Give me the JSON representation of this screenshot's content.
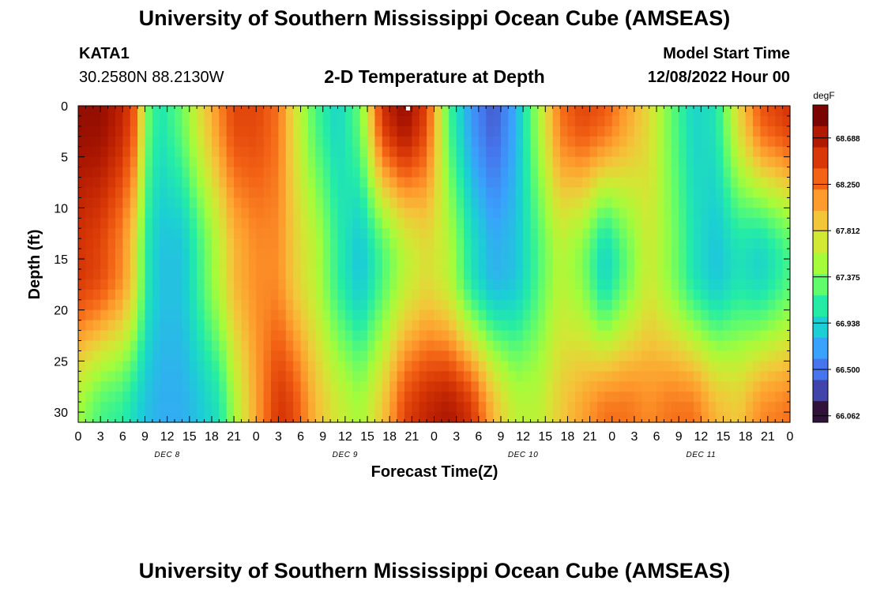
{
  "header": {
    "title": "University of Southern Mississippi Ocean Cube (AMSEAS)",
    "station_id": "KATA1",
    "coords": "30.2580N  88.2130W",
    "plot_title": "2-D Temperature at Depth",
    "model_label": "Model Start Time",
    "model_time": "12/08/2022 Hour 00"
  },
  "footer": {
    "title": "University of Southern Mississippi Ocean Cube (AMSEAS)"
  },
  "chart_data": {
    "type": "heatmap",
    "xlabel": "Forecast Time(Z)",
    "ylabel": "Depth (ft)",
    "x_hours": [
      0,
      96
    ],
    "x_tick_labels": [
      "0",
      "3",
      "6",
      "9",
      "12",
      "15",
      "18",
      "21",
      "0",
      "3",
      "6",
      "9",
      "12",
      "15",
      "18",
      "21",
      "0",
      "3",
      "6",
      "9",
      "12",
      "15",
      "18",
      "21",
      "0",
      "3",
      "6",
      "9",
      "12",
      "15",
      "18",
      "21",
      "0"
    ],
    "day_labels": [
      "DEC 8",
      "DEC 9",
      "DEC 10",
      "DEC 11"
    ],
    "ylim": [
      0,
      31
    ],
    "y_ticks": [
      0,
      5,
      10,
      15,
      20,
      25,
      30
    ],
    "colorbar": {
      "unit": "degF",
      "min": 66.0,
      "max": 69.0,
      "tick_values": [
        68.688,
        68.25,
        67.812,
        67.375,
        66.938,
        66.5,
        66.062
      ],
      "tick_labels": [
        "68.688",
        "68.250",
        "67.812",
        "67.375",
        "66.938",
        "66.500",
        "66.062"
      ],
      "colors": [
        "#30123b",
        "#4145ab",
        "#4675ed",
        "#39a2fc",
        "#1bcfd4",
        "#24eca6",
        "#61fc6c",
        "#a4fc3b",
        "#d1e834",
        "#f3c63a",
        "#fe9b2d",
        "#f36315",
        "#d93806",
        "#b11901",
        "#7a0402"
      ]
    },
    "profiles": [
      {
        "hour": 0,
        "top": 68.9,
        "mid": 68.6,
        "bot": 67.5
      },
      {
        "hour": 3,
        "top": 68.9,
        "mid": 68.5,
        "bot": 67.2
      },
      {
        "hour": 6,
        "top": 68.7,
        "mid": 68.2,
        "bot": 67.1
      },
      {
        "hour": 8,
        "top": 68.3,
        "mid": 67.7,
        "bot": 66.9
      },
      {
        "hour": 9,
        "top": 67.4,
        "mid": 67.1,
        "bot": 66.8
      },
      {
        "hour": 11,
        "top": 67.0,
        "mid": 66.8,
        "bot": 66.7
      },
      {
        "hour": 14,
        "top": 67.3,
        "mid": 66.8,
        "bot": 66.7
      },
      {
        "hour": 16,
        "top": 67.7,
        "mid": 67.1,
        "bot": 66.8
      },
      {
        "hour": 19,
        "top": 68.2,
        "mid": 67.6,
        "bot": 67.0
      },
      {
        "hour": 21,
        "top": 68.5,
        "mid": 68.0,
        "bot": 67.5
      },
      {
        "hour": 24,
        "top": 68.5,
        "mid": 68.2,
        "bot": 68.1
      },
      {
        "hour": 27,
        "top": 68.3,
        "mid": 68.2,
        "bot": 68.6
      },
      {
        "hour": 29,
        "top": 67.8,
        "mid": 67.9,
        "bot": 68.5
      },
      {
        "hour": 32,
        "top": 67.2,
        "mid": 67.6,
        "bot": 68.0
      },
      {
        "hour": 35,
        "top": 66.9,
        "mid": 67.1,
        "bot": 67.7
      },
      {
        "hour": 38,
        "top": 67.3,
        "mid": 66.8,
        "bot": 67.5
      },
      {
        "hour": 41,
        "top": 68.6,
        "mid": 67.2,
        "bot": 67.9
      },
      {
        "hour": 44,
        "top": 68.9,
        "mid": 67.6,
        "bot": 68.5
      },
      {
        "hour": 47,
        "top": 68.5,
        "mid": 67.8,
        "bot": 68.7
      },
      {
        "hour": 50,
        "top": 67.2,
        "mid": 67.6,
        "bot": 68.8
      },
      {
        "hour": 53,
        "top": 66.6,
        "mid": 67.0,
        "bot": 68.6
      },
      {
        "hour": 56,
        "top": 66.3,
        "mid": 66.7,
        "bot": 68.0
      },
      {
        "hour": 59,
        "top": 66.7,
        "mid": 66.8,
        "bot": 67.6
      },
      {
        "hour": 62,
        "top": 67.5,
        "mid": 67.2,
        "bot": 67.6
      },
      {
        "hour": 65,
        "top": 68.3,
        "mid": 67.6,
        "bot": 67.9
      },
      {
        "hour": 68,
        "top": 68.5,
        "mid": 67.4,
        "bot": 68.1
      },
      {
        "hour": 71,
        "top": 68.4,
        "mid": 66.9,
        "bot": 68.3
      },
      {
        "hour": 74,
        "top": 68.1,
        "mid": 67.3,
        "bot": 68.3
      },
      {
        "hour": 77,
        "top": 67.8,
        "mid": 67.7,
        "bot": 68.2
      },
      {
        "hour": 80,
        "top": 67.3,
        "mid": 67.4,
        "bot": 68.3
      },
      {
        "hour": 83,
        "top": 66.9,
        "mid": 67.0,
        "bot": 68.3
      },
      {
        "hour": 86,
        "top": 67.0,
        "mid": 66.8,
        "bot": 68.0
      },
      {
        "hour": 89,
        "top": 67.8,
        "mid": 67.0,
        "bot": 67.9
      },
      {
        "hour": 92,
        "top": 68.4,
        "mid": 66.9,
        "bot": 68.2
      },
      {
        "hour": 96,
        "top": 68.6,
        "mid": 67.2,
        "bot": 68.3
      }
    ]
  }
}
